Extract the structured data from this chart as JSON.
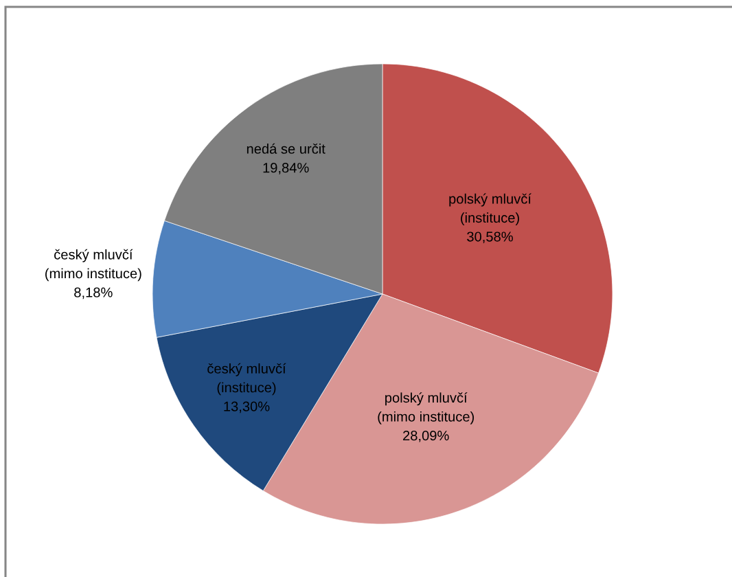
{
  "chart_data": {
    "type": "pie",
    "categories": [
      "polský mluvčí\n(instituce)",
      "polský mluvčí\n(mimo instituce)",
      "český mluvčí\n(instituce)",
      "český mluvčí\n(mimo instituce)",
      "nedá se určit"
    ],
    "values": [
      30.58,
      28.09,
      13.3,
      8.18,
      19.84
    ],
    "colors": [
      "#c0504d",
      "#d99694",
      "#1f497d",
      "#4f81bd",
      "#7f7f7f"
    ],
    "value_labels": [
      "30,58%",
      "28,09%",
      "13,30%",
      "8,18%",
      "19,84%"
    ],
    "legend": false
  }
}
